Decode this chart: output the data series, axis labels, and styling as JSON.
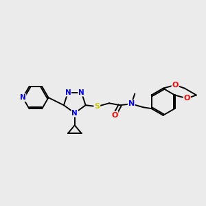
{
  "bg_color": "#ebebeb",
  "atom_colors": {
    "N": "#0000ff",
    "S": "#cccc00",
    "O": "#ff0000",
    "C": "#000000"
  },
  "bond_color": "#000000",
  "bond_width": 1.4,
  "figsize": [
    3.0,
    3.0
  ],
  "dpi": 100
}
